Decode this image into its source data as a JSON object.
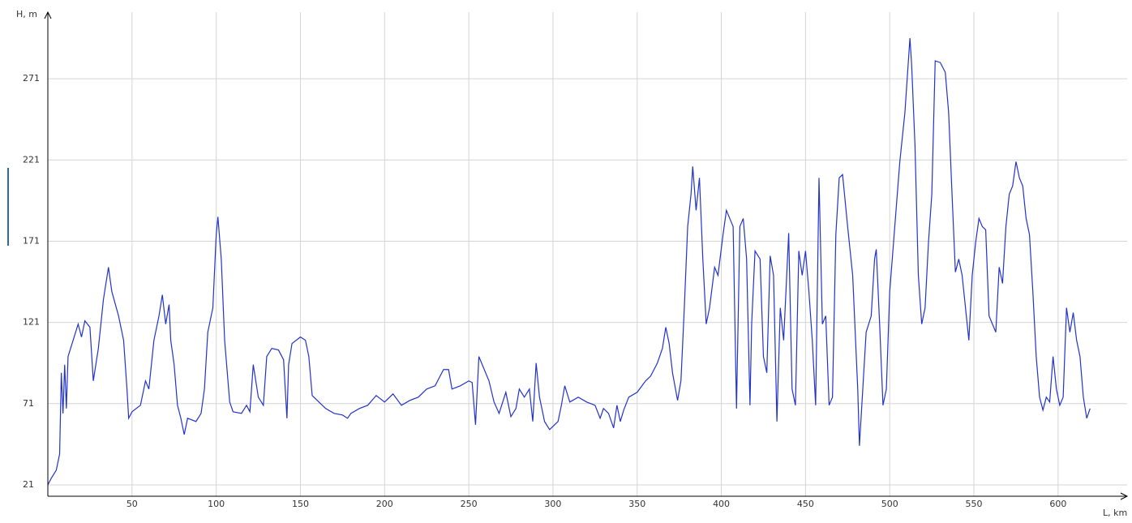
{
  "chart_data": {
    "type": "line",
    "y_label": "H, m",
    "x_label": "L, km",
    "xlim": [
      0,
      641
    ],
    "ylim": [
      14,
      312
    ],
    "xticks": [
      50,
      100,
      150,
      200,
      250,
      300,
      350,
      400,
      450,
      500,
      550,
      600
    ],
    "yticks": [
      21,
      71,
      121,
      171,
      221,
      271
    ],
    "grid": true,
    "series": [
      {
        "color": "#2233cc",
        "x": [
          0,
          2,
          5,
          7,
          8,
          9,
          10,
          11,
          12,
          15,
          18,
          20,
          22,
          25,
          27,
          30,
          33,
          36,
          38,
          42,
          45,
          47,
          48,
          50,
          55,
          58,
          60,
          63,
          66,
          68,
          70,
          72,
          73,
          75,
          77,
          79,
          81,
          83,
          88,
          91,
          93,
          95,
          98,
          100,
          101,
          103,
          105,
          108,
          110,
          115,
          118,
          120,
          122,
          125,
          128,
          130,
          133,
          137,
          140,
          142,
          143,
          145,
          150,
          153,
          155,
          157,
          160,
          165,
          170,
          175,
          178,
          180,
          185,
          190,
          195,
          200,
          205,
          210,
          215,
          220,
          225,
          230,
          235,
          238,
          240,
          245,
          250,
          252,
          254,
          256,
          258,
          262,
          265,
          268,
          272,
          275,
          278,
          280,
          283,
          286,
          288,
          290,
          292,
          295,
          298,
          300,
          303,
          305,
          307,
          310,
          315,
          320,
          325,
          328,
          330,
          333,
          336,
          338,
          340,
          342,
          345,
          350,
          355,
          358,
          362,
          365,
          367,
          369,
          371,
          374,
          376,
          378,
          380,
          382,
          383,
          385,
          387,
          389,
          391,
          393,
          396,
          398,
          401,
          403,
          405,
          407,
          409,
          411,
          413,
          415,
          417,
          418,
          420,
          423,
          425,
          427,
          429,
          431,
          433,
          435,
          437,
          440,
          442,
          444,
          446,
          448,
          450,
          452,
          454,
          456,
          458,
          460,
          462,
          464,
          466,
          468,
          470,
          472,
          475,
          478,
          481,
          482,
          484,
          486,
          489,
          491,
          492,
          494,
          496,
          498,
          500,
          503,
          506,
          509,
          512,
          513,
          515,
          517,
          519,
          521,
          523,
          525,
          527,
          530,
          533,
          535,
          537,
          539,
          541,
          543,
          545,
          547,
          549,
          551,
          553,
          555,
          557,
          559,
          561,
          563,
          565,
          567,
          569,
          571,
          573,
          575,
          577,
          579,
          581,
          583,
          585,
          587,
          589,
          591,
          593,
          595,
          597,
          599,
          601,
          603,
          605,
          607,
          609,
          611,
          613,
          615,
          617,
          619
        ],
        "values": [
          21,
          25,
          30,
          40,
          90,
          65,
          95,
          68,
          100,
          110,
          120,
          112,
          122,
          118,
          85,
          105,
          135,
          155,
          140,
          125,
          110,
          80,
          62,
          66,
          70,
          85,
          80,
          110,
          125,
          138,
          120,
          132,
          110,
          95,
          70,
          62,
          52,
          62,
          60,
          65,
          80,
          115,
          130,
          175,
          186,
          160,
          110,
          72,
          66,
          65,
          70,
          66,
          95,
          75,
          70,
          100,
          105,
          104,
          98,
          62,
          95,
          108,
          112,
          110,
          100,
          76,
          73,
          68,
          65,
          64,
          62,
          65,
          68,
          70,
          76,
          72,
          77,
          70,
          73,
          75,
          80,
          82,
          92,
          92,
          80,
          82,
          85,
          84,
          58,
          100,
          95,
          85,
          72,
          65,
          78,
          63,
          68,
          80,
          75,
          80,
          60,
          96,
          75,
          60,
          55,
          57,
          60,
          70,
          82,
          72,
          75,
          72,
          70,
          62,
          68,
          65,
          56,
          70,
          60,
          67,
          75,
          78,
          85,
          88,
          96,
          105,
          118,
          108,
          90,
          73,
          85,
          130,
          180,
          200,
          217,
          190,
          210,
          160,
          120,
          130,
          155,
          150,
          175,
          190,
          185,
          180,
          68,
          180,
          185,
          160,
          70,
          120,
          165,
          160,
          100,
          90,
          162,
          150,
          60,
          130,
          110,
          176,
          80,
          70,
          165,
          150,
          165,
          140,
          110,
          70,
          210,
          120,
          125,
          70,
          75,
          175,
          210,
          212,
          180,
          150,
          80,
          45,
          80,
          115,
          125,
          160,
          166,
          120,
          70,
          80,
          140,
          180,
          220,
          250,
          296,
          280,
          230,
          150,
          120,
          130,
          170,
          200,
          282,
          281,
          275,
          250,
          200,
          152,
          160,
          150,
          130,
          110,
          150,
          170,
          185,
          180,
          178,
          125,
          120,
          115,
          155,
          145,
          180,
          200,
          205,
          220,
          210,
          205,
          185,
          175,
          140,
          100,
          75,
          67,
          75,
          72,
          100,
          80,
          70,
          75,
          130,
          115,
          127,
          110,
          100,
          75,
          62,
          68
        ]
      }
    ]
  }
}
